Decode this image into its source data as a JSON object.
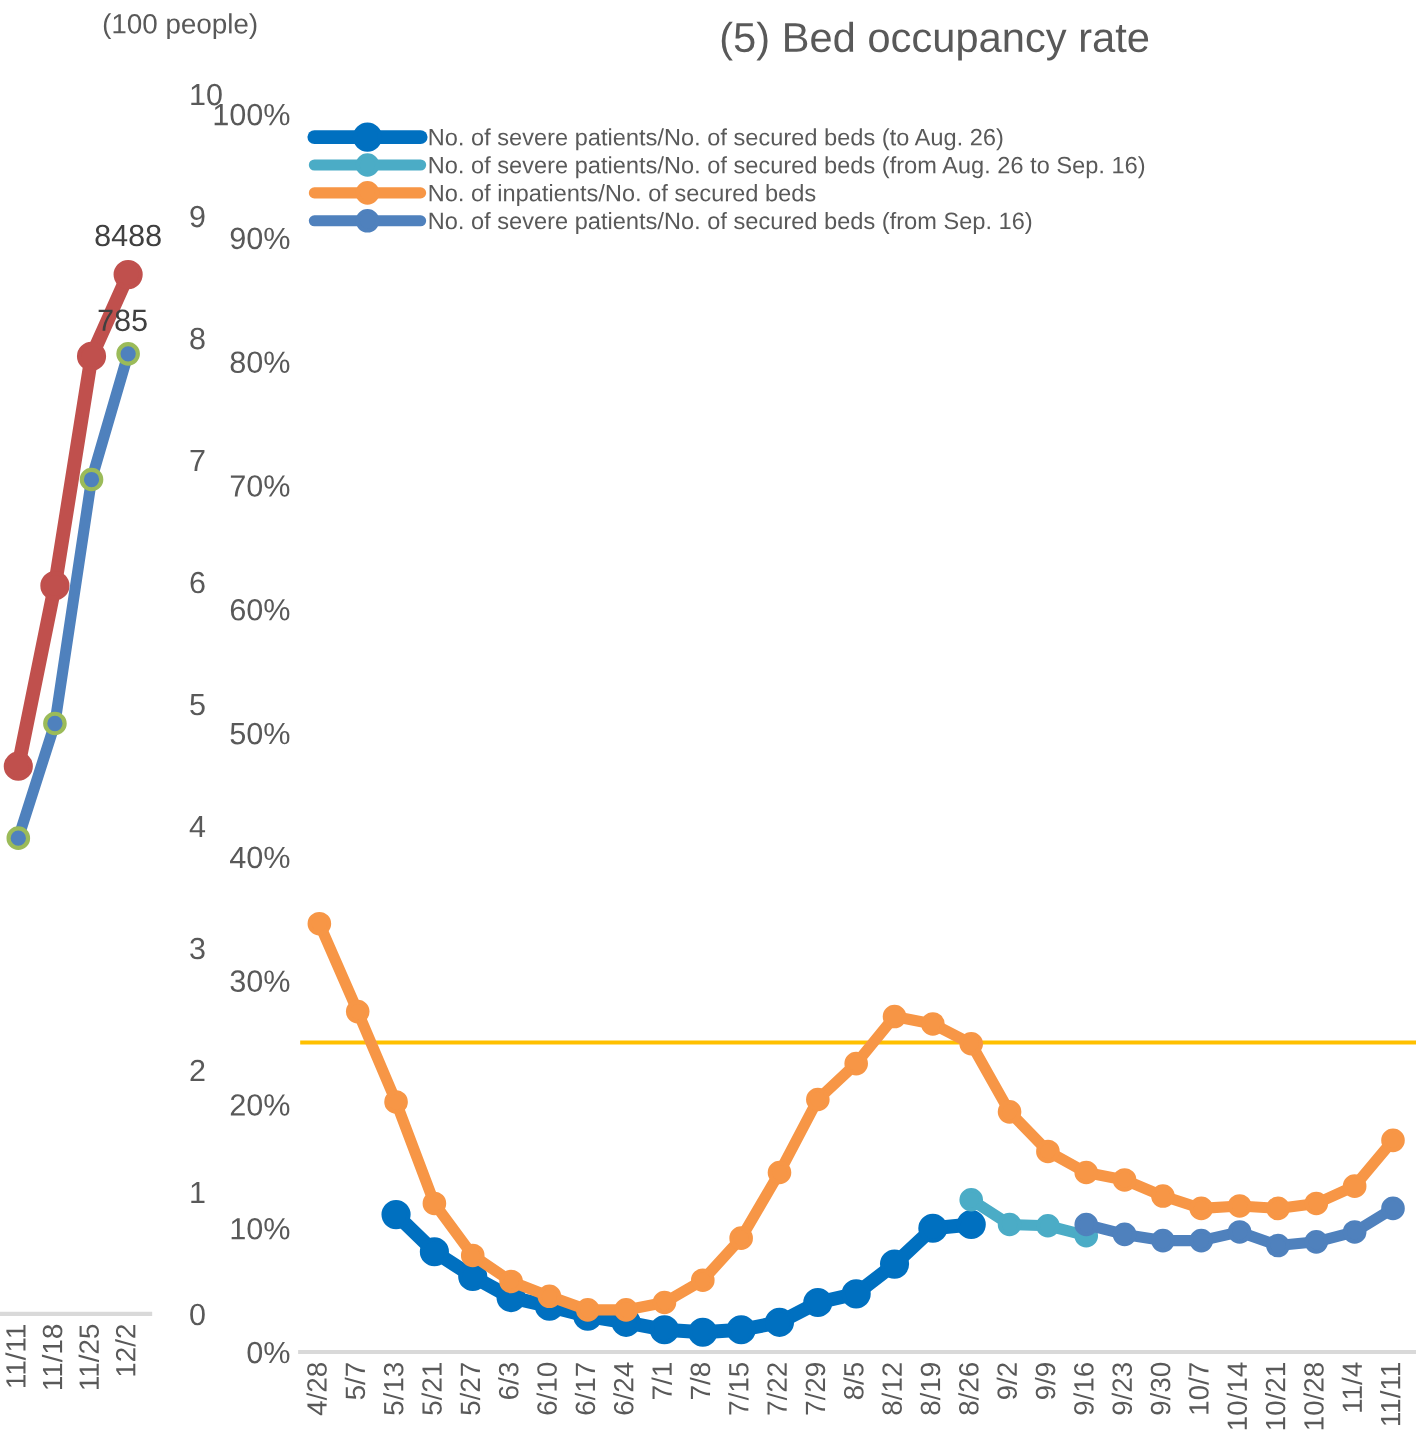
{
  "chart_data": [
    {
      "type": "line",
      "categories": [
        "11/11",
        "11/18",
        "11/25",
        "12/2"
      ],
      "y2label": "(100 people)",
      "y2lim": [
        0,
        10
      ],
      "y2ticks": [
        0,
        1,
        2,
        3,
        4,
        5,
        6,
        7,
        8,
        9,
        10
      ],
      "marker": "circle",
      "grid": false,
      "legend": false,
      "series": [
        {
          "color": "#c0504d",
          "axis": "y2",
          "values": [
            4.49,
            5.97,
            7.85,
            8.52
          ]
        },
        {
          "color": "#4f81bd",
          "axis": "y2",
          "values": [
            3.9,
            4.84,
            6.84,
            7.87
          ]
        }
      ],
      "annotations": [
        "8488",
        "785"
      ]
    },
    {
      "type": "line",
      "title": "(5) Bed occupancy rate",
      "categories": [
        "4/28",
        "5/7",
        "5/13",
        "5/21",
        "5/27",
        "6/3",
        "6/10",
        "6/17",
        "6/24",
        "7/1",
        "7/8",
        "7/15",
        "7/22",
        "7/29",
        "8/5",
        "8/12",
        "8/19",
        "8/26",
        "9/2",
        "9/9",
        "9/16",
        "9/23",
        "9/30",
        "10/7",
        "10/14",
        "10/21",
        "10/28",
        "11/4",
        "11/11"
      ],
      "ylim": [
        0,
        100
      ],
      "yticks": [
        {
          "value": 0,
          "label": "0%"
        },
        {
          "value": 10,
          "label": "10%"
        },
        {
          "value": 20,
          "label": "20%"
        },
        {
          "value": 30,
          "label": "30%"
        },
        {
          "value": 40,
          "label": "40%"
        },
        {
          "value": 50,
          "label": "50%"
        },
        {
          "value": 60,
          "label": "60%"
        },
        {
          "value": 70,
          "label": "70%"
        },
        {
          "value": 80,
          "label": "80%"
        },
        {
          "value": 90,
          "label": "90%"
        },
        {
          "value": 100,
          "label": "100%"
        }
      ],
      "marker": "circle",
      "grid": false,
      "legend": "top left",
      "ref_lines": [
        {
          "axis": "y",
          "value": 25,
          "color": "#ffc000"
        }
      ],
      "series": [
        {
          "name": "No. of severe patients/No. of secured beds (to Aug. 26)",
          "color": "#0070c0",
          "values": [
            null,
            null,
            11.1,
            8.1,
            6.1,
            4.4,
            3.7,
            2.9,
            2.4,
            1.8,
            1.6,
            1.8,
            2.4,
            4.0,
            4.7,
            7.1,
            10.0,
            10.3,
            null,
            null,
            null,
            null,
            null,
            null,
            null,
            null,
            null,
            null,
            null
          ]
        },
        {
          "name": "No. of severe patients/No. of secured beds (from Aug. 26 to Sep. 16)",
          "color": "#4bacc6",
          "values": [
            null,
            null,
            null,
            null,
            null,
            null,
            null,
            null,
            null,
            null,
            null,
            null,
            null,
            null,
            null,
            null,
            null,
            12.3,
            10.3,
            10.2,
            9.4,
            null,
            null,
            null,
            null,
            null,
            null,
            null,
            null
          ]
        },
        {
          "name": "No. of inpatients/No. of secured beds",
          "color": "#f79646",
          "values": [
            34.6,
            27.5,
            20.2,
            12.0,
            7.8,
            5.7,
            4.5,
            3.4,
            3.4,
            4.0,
            5.8,
            9.2,
            14.5,
            20.4,
            23.3,
            27.1,
            26.5,
            24.9,
            19.4,
            16.2,
            14.5,
            13.9,
            12.6,
            11.6,
            11.8,
            11.6,
            12.0,
            13.4,
            17.1
          ]
        },
        {
          "name": "No. of severe patients/No. of secured beds (from Sep. 16)",
          "color": "#4f81bd",
          "values": [
            null,
            null,
            null,
            null,
            null,
            null,
            null,
            null,
            null,
            null,
            null,
            null,
            null,
            null,
            null,
            null,
            null,
            null,
            null,
            null,
            10.3,
            9.5,
            9.0,
            9.0,
            9.7,
            8.6,
            8.9,
            9.7,
            11.6
          ]
        }
      ]
    }
  ]
}
